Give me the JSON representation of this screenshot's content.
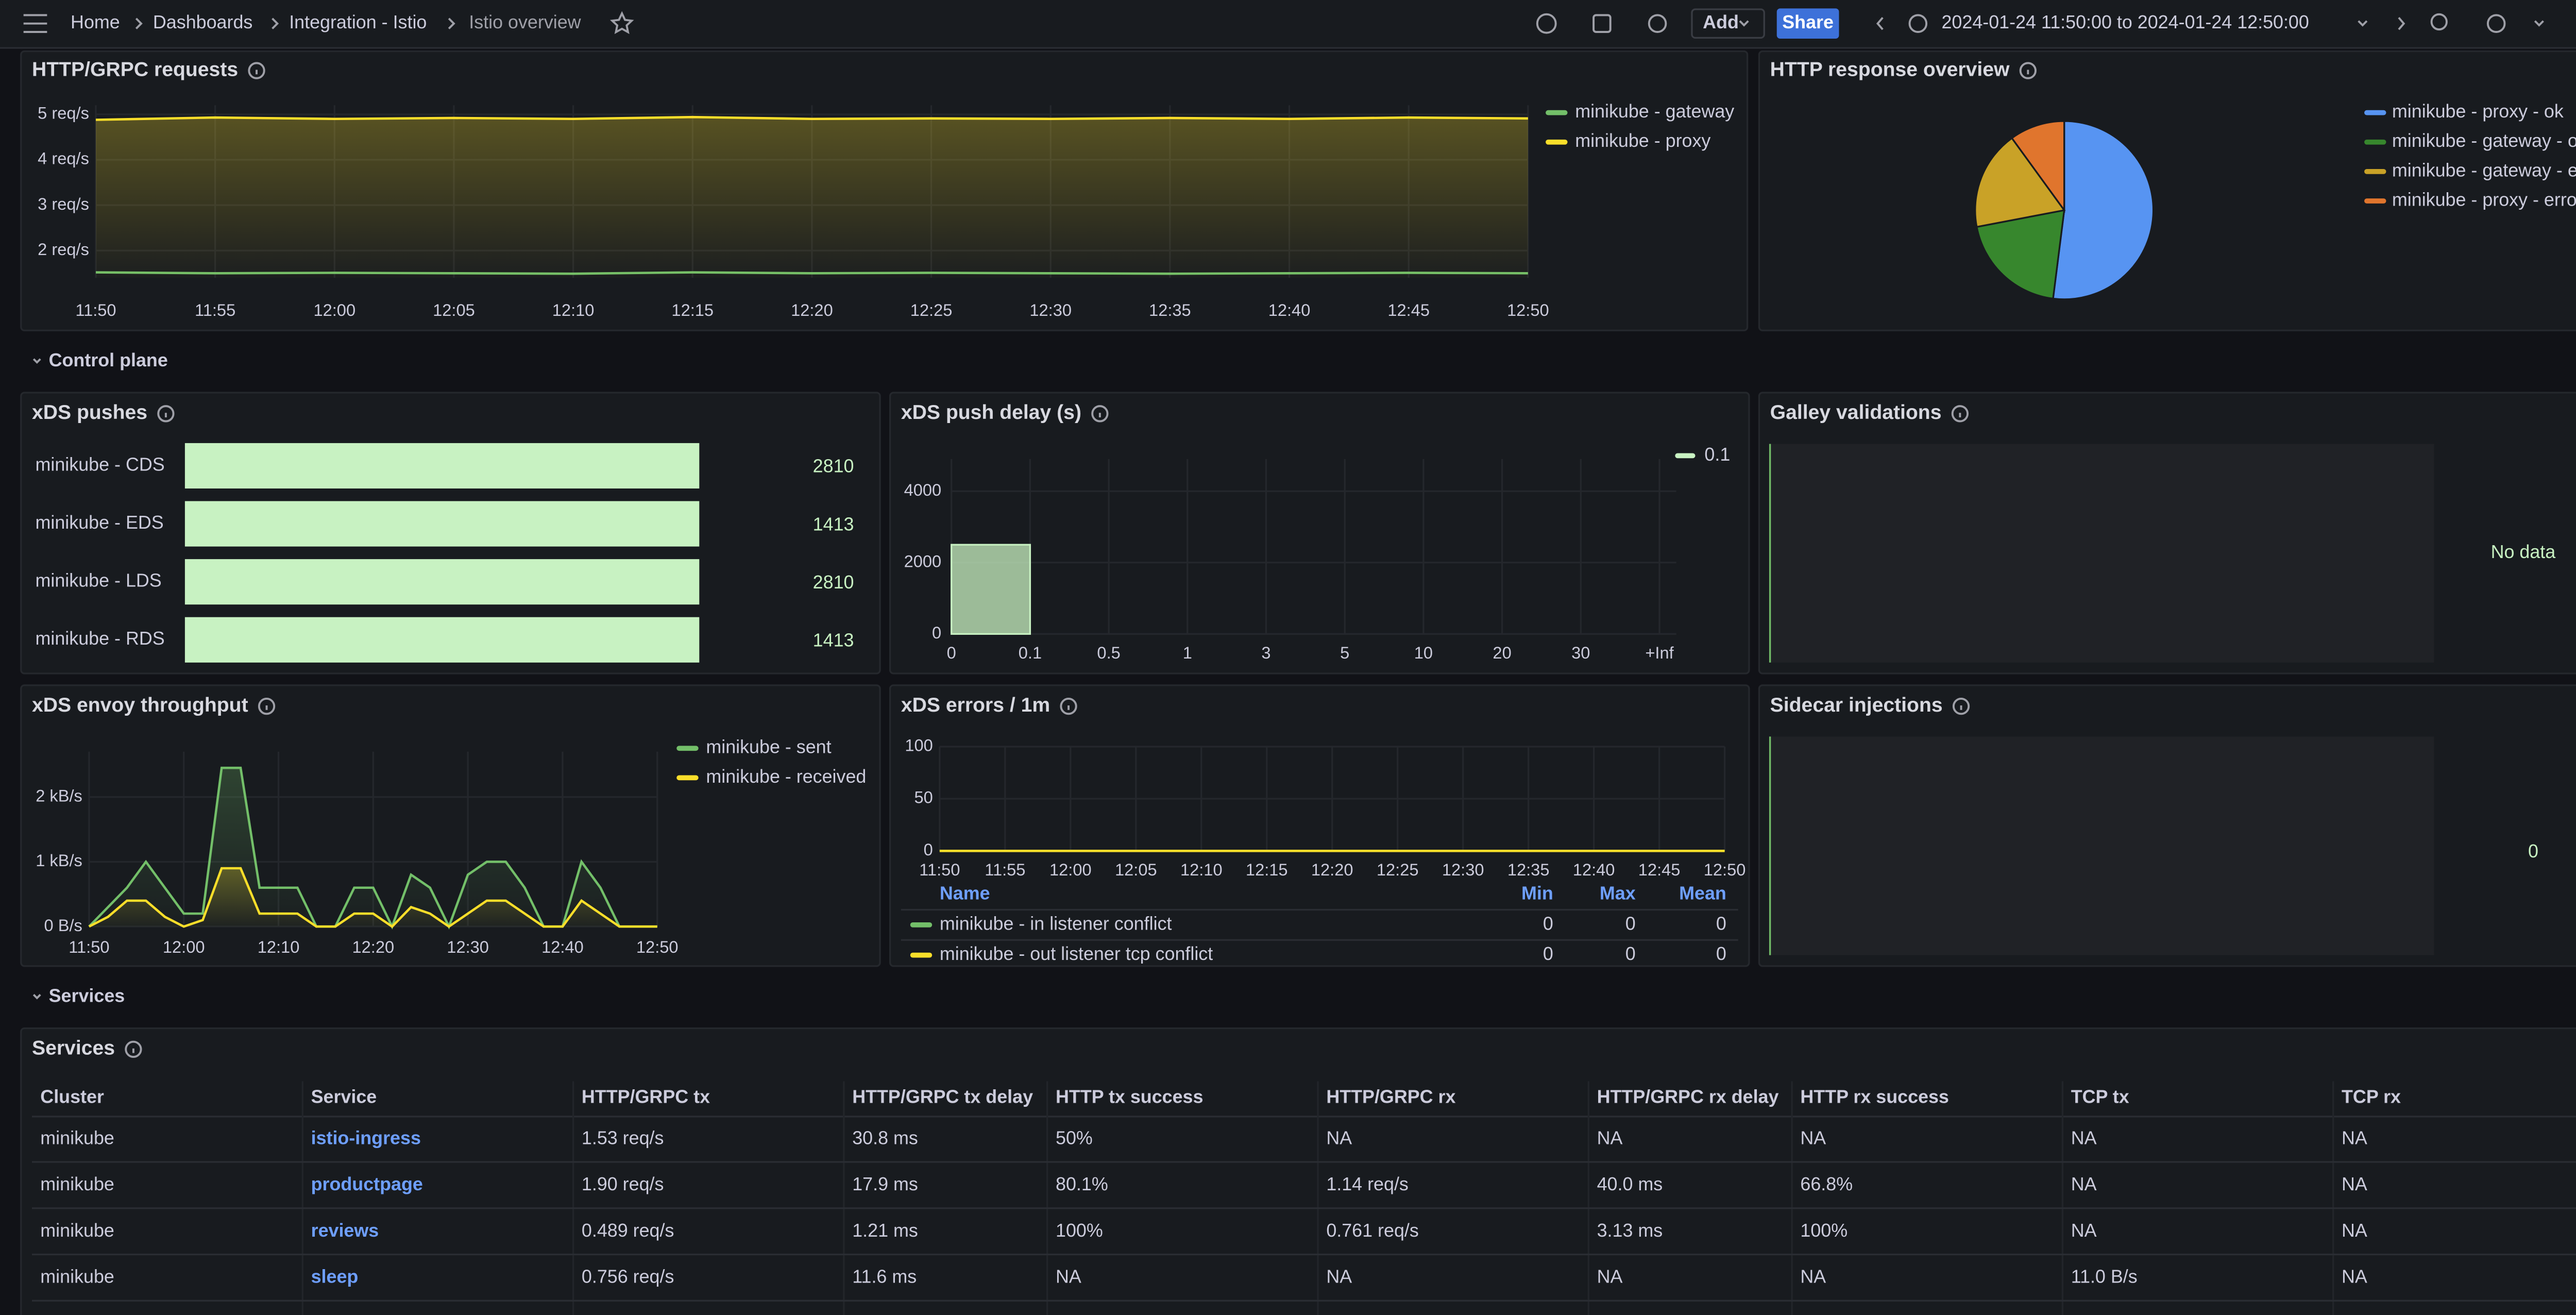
{
  "header": {
    "breadcrumb": [
      "Home",
      "Dashboards",
      "Integration - Istio",
      "Istio overview"
    ],
    "add": "Add",
    "share": "Share",
    "time_range": "2024-01-24 11:50:00 to 2024-01-24 12:50:00"
  },
  "rows": [
    "Control plane",
    "Services"
  ],
  "panels": {
    "requests": {
      "type": "line",
      "title": "HTTP/GRPC requests",
      "x": [
        "11:50",
        "11:55",
        "12:00",
        "12:05",
        "12:10",
        "12:15",
        "12:20",
        "12:25",
        "12:30",
        "12:35",
        "12:40",
        "12:45",
        "12:50"
      ],
      "series": [
        {
          "name": "minikube - gateway",
          "color": "#73bf69",
          "values": [
            1.52,
            1.5,
            1.51,
            1.5,
            1.49,
            1.52,
            1.5,
            1.51,
            1.5,
            1.49,
            1.5,
            1.51,
            1.5
          ]
        },
        {
          "name": "minikube - proxy",
          "color": "#fade2a",
          "values": [
            4.88,
            4.93,
            4.9,
            4.92,
            4.9,
            4.94,
            4.9,
            4.91,
            4.9,
            4.92,
            4.9,
            4.93,
            4.91
          ]
        }
      ],
      "xlim": [
        "11:50",
        "12:50"
      ],
      "xticks": [
        "11:50",
        "11:55",
        "12:00",
        "12:05",
        "12:10",
        "12:15",
        "12:20",
        "12:25",
        "12:30",
        "12:35",
        "12:40",
        "12:45",
        "12:50"
      ],
      "ylim": [
        1.4,
        5.2
      ],
      "yticks": [
        {
          "value": 2,
          "label": "2 req/s"
        },
        {
          "value": 3,
          "label": "3 req/s"
        },
        {
          "value": 4,
          "label": "4 req/s"
        },
        {
          "value": 5,
          "label": "5 req/s"
        }
      ]
    },
    "response": {
      "type": "pie",
      "title": "HTTP response overview",
      "categories": [
        "minikube - proxy - ok",
        "minikube - gateway - ok",
        "minikube - gateway - error",
        "minikube - proxy - error"
      ],
      "values": [
        52,
        20,
        18,
        10
      ],
      "colors": [
        "#5794f2",
        "#37872d",
        "#c9a227",
        "#e0752d"
      ]
    },
    "pushes": {
      "type": "bar-gauge",
      "title": "xDS pushes",
      "categories": [
        "minikube - CDS",
        "minikube - EDS",
        "minikube - LDS",
        "minikube - RDS"
      ],
      "values": [
        2810,
        1413,
        2810,
        1413
      ],
      "color": "#c8f2c2"
    },
    "push_delay": {
      "type": "histogram",
      "title": "xDS push delay (s)",
      "bins": [
        "0",
        "0.1",
        "0.5",
        "1",
        "3",
        "5",
        "10",
        "20",
        "30",
        "+Inf"
      ],
      "series": [
        {
          "name": "0.1",
          "color": "#c8f2c2",
          "values": [
            2500,
            0,
            0,
            0,
            0,
            0,
            0,
            0,
            0
          ]
        }
      ],
      "ylim": [
        0,
        4900
      ],
      "yticks": [
        0,
        2000,
        4000
      ]
    },
    "galley": {
      "type": "stat",
      "title": "Galley validations",
      "text": "No data"
    },
    "throughput": {
      "type": "line",
      "title": "xDS envoy throughput",
      "x": [
        "11:50",
        "11:52",
        "11:54",
        "11:56",
        "11:58",
        "12:00",
        "12:02",
        "12:04",
        "12:06",
        "12:08",
        "12:10",
        "12:12",
        "12:14",
        "12:16",
        "12:18",
        "12:20",
        "12:22",
        "12:24",
        "12:26",
        "12:28",
        "12:30",
        "12:32",
        "12:34",
        "12:36",
        "12:38",
        "12:40",
        "12:42",
        "12:44",
        "12:46",
        "12:48",
        "12:50"
      ],
      "series": [
        {
          "name": "minikube - sent",
          "color": "#73bf69",
          "values": [
            0,
            300,
            600,
            1000,
            600,
            200,
            200,
            2450,
            2450,
            600,
            600,
            600,
            0,
            0,
            600,
            600,
            0,
            800,
            600,
            0,
            800,
            1000,
            1000,
            600,
            0,
            0,
            1000,
            600,
            0,
            0,
            0
          ]
        },
        {
          "name": "minikube - received",
          "color": "#fade2a",
          "values": [
            0,
            150,
            400,
            400,
            150,
            0,
            100,
            900,
            900,
            200,
            200,
            200,
            0,
            0,
            200,
            200,
            0,
            300,
            200,
            0,
            200,
            400,
            400,
            200,
            0,
            0,
            400,
            200,
            0,
            0,
            0
          ]
        }
      ],
      "xlim": [
        "11:50",
        "12:50"
      ],
      "xticks": [
        "11:50",
        "12:00",
        "12:10",
        "12:20",
        "12:30",
        "12:40",
        "12:50"
      ],
      "ylim": [
        0,
        2700
      ],
      "yticks": [
        {
          "value": 0,
          "label": "0 B/s"
        },
        {
          "value": 1000,
          "label": "1 kB/s"
        },
        {
          "value": 2000,
          "label": "2 kB/s"
        }
      ]
    },
    "errors": {
      "type": "line",
      "title": "xDS errors / 1m",
      "x": [
        "11:50",
        "12:50"
      ],
      "series": [
        {
          "name": "minikube - in listener conflict",
          "color": "#73bf69",
          "values": [
            0,
            0
          ],
          "min": 0,
          "max": 0,
          "mean": 0
        },
        {
          "name": "minikube - out listener tcp conflict",
          "color": "#fade2a",
          "values": [
            0,
            0
          ],
          "min": 0,
          "max": 0,
          "mean": 0
        }
      ],
      "legend_columns": [
        "Name",
        "Min",
        "Max",
        "Mean"
      ],
      "xlim": [
        "11:50",
        "12:50"
      ],
      "xticks": [
        "11:50",
        "11:55",
        "12:00",
        "12:05",
        "12:10",
        "12:15",
        "12:20",
        "12:25",
        "12:30",
        "12:35",
        "12:40",
        "12:45",
        "12:50"
      ],
      "ylim": [
        0,
        100
      ],
      "yticks": [
        0,
        50,
        100
      ]
    },
    "sidecar": {
      "type": "stat",
      "title": "Sidecar injections",
      "value": 0,
      "color": "#c8f2c2"
    },
    "services": {
      "type": "table",
      "title": "Services",
      "columns": [
        "Cluster",
        "Service",
        "HTTP/GRPC tx",
        "HTTP/GRPC tx delay",
        "HTTP tx success",
        "HTTP/GRPC rx",
        "HTTP/GRPC rx delay",
        "HTTP rx success",
        "TCP tx",
        "TCP rx"
      ],
      "rows": [
        [
          "minikube",
          "istio-ingress",
          "1.53 req/s",
          "30.8 ms",
          "50%",
          "NA",
          "NA",
          "NA",
          "NA",
          "NA"
        ],
        [
          "minikube",
          "productpage",
          "1.90 req/s",
          "17.9 ms",
          "80.1%",
          "1.14 req/s",
          "40.0 ms",
          "66.8%",
          "NA",
          "NA"
        ],
        [
          "minikube",
          "reviews",
          "0.489 req/s",
          "1.21 ms",
          "100%",
          "0.761 req/s",
          "3.13 ms",
          "100%",
          "NA",
          "NA"
        ],
        [
          "minikube",
          "sleep",
          "0.756 req/s",
          "11.6 ms",
          "NA",
          "NA",
          "NA",
          "NA",
          "11.0 B/s",
          "NA"
        ]
      ]
    }
  }
}
